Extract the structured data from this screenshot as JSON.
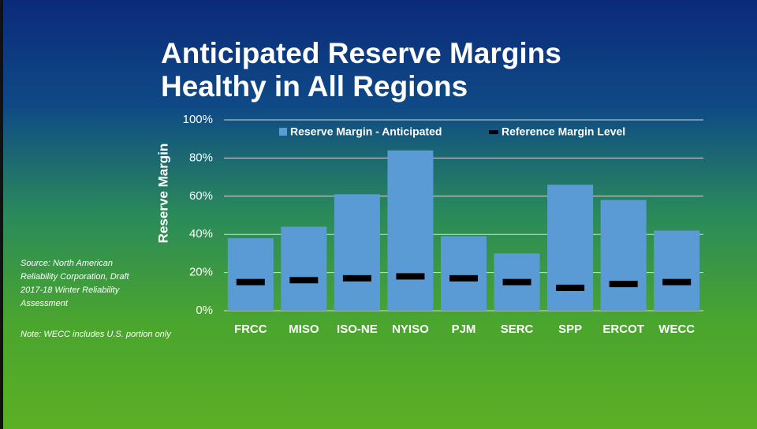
{
  "chart_data": {
    "type": "bar",
    "title": [
      "Anticipated Reserve Margins",
      "Healthy in All Regions"
    ],
    "y_label": "Reserve Margin",
    "categories": [
      "FRCC",
      "MISO",
      "ISO-NE",
      "NYISO",
      "PJM",
      "SERC",
      "SPP",
      "ERCOT",
      "WECC"
    ],
    "series": [
      {
        "name": "Reserve Margin - Anticipated",
        "color": "#5b9bd5",
        "values": [
          38,
          44,
          61,
          84,
          39,
          30,
          66,
          58,
          42
        ]
      },
      {
        "name": "Reference Margin Level",
        "color": "#000000",
        "marker": "dash",
        "values": [
          15,
          16,
          17,
          18,
          17,
          15,
          12,
          14,
          15
        ]
      }
    ],
    "ylim": [
      0,
      100
    ],
    "yticks": [
      {
        "value": 0,
        "label": "0%"
      },
      {
        "value": 20,
        "label": "20%"
      },
      {
        "value": 40,
        "label": "40%"
      },
      {
        "value": 60,
        "label": "60%"
      },
      {
        "value": 80,
        "label": "80%"
      },
      {
        "value": 100,
        "label": "100%"
      }
    ],
    "grid": true,
    "legend": "top",
    "source": "Source: North American Reliability Corporation, Draft 2017-18 Winter Reliability Assessment",
    "note": "Note: WECC includes U.S. portion only"
  }
}
